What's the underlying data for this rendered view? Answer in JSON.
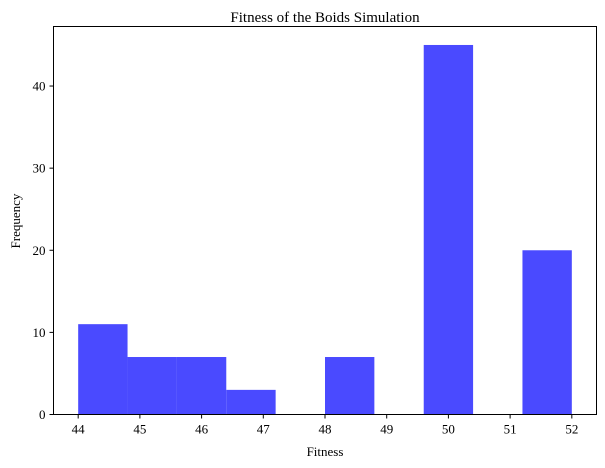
{
  "chart_data": {
    "type": "bar",
    "title": "Fitness of the Boids Simulation",
    "xlabel": "Fitness",
    "ylabel": "Frequency",
    "bar_color": "#4a4aff",
    "bins": [
      {
        "x0": 44.0,
        "x1": 44.8,
        "count": 11
      },
      {
        "x0": 44.8,
        "x1": 45.6,
        "count": 7
      },
      {
        "x0": 45.6,
        "x1": 46.4,
        "count": 7
      },
      {
        "x0": 46.4,
        "x1": 47.2,
        "count": 3
      },
      {
        "x0": 47.2,
        "x1": 48.0,
        "count": 0
      },
      {
        "x0": 48.0,
        "x1": 48.8,
        "count": 7
      },
      {
        "x0": 48.8,
        "x1": 49.6,
        "count": 0
      },
      {
        "x0": 49.6,
        "x1": 50.4,
        "count": 45
      },
      {
        "x0": 50.4,
        "x1": 51.2,
        "count": 0
      },
      {
        "x0": 51.2,
        "x1": 52.0,
        "count": 20
      }
    ],
    "xlim": [
      43.6,
      52.4
    ],
    "ylim": [
      0,
      47.25
    ],
    "xticks": [
      44,
      45,
      46,
      47,
      48,
      49,
      50,
      51,
      52
    ],
    "yticks": [
      0,
      10,
      20,
      30,
      40
    ],
    "grid": false
  }
}
